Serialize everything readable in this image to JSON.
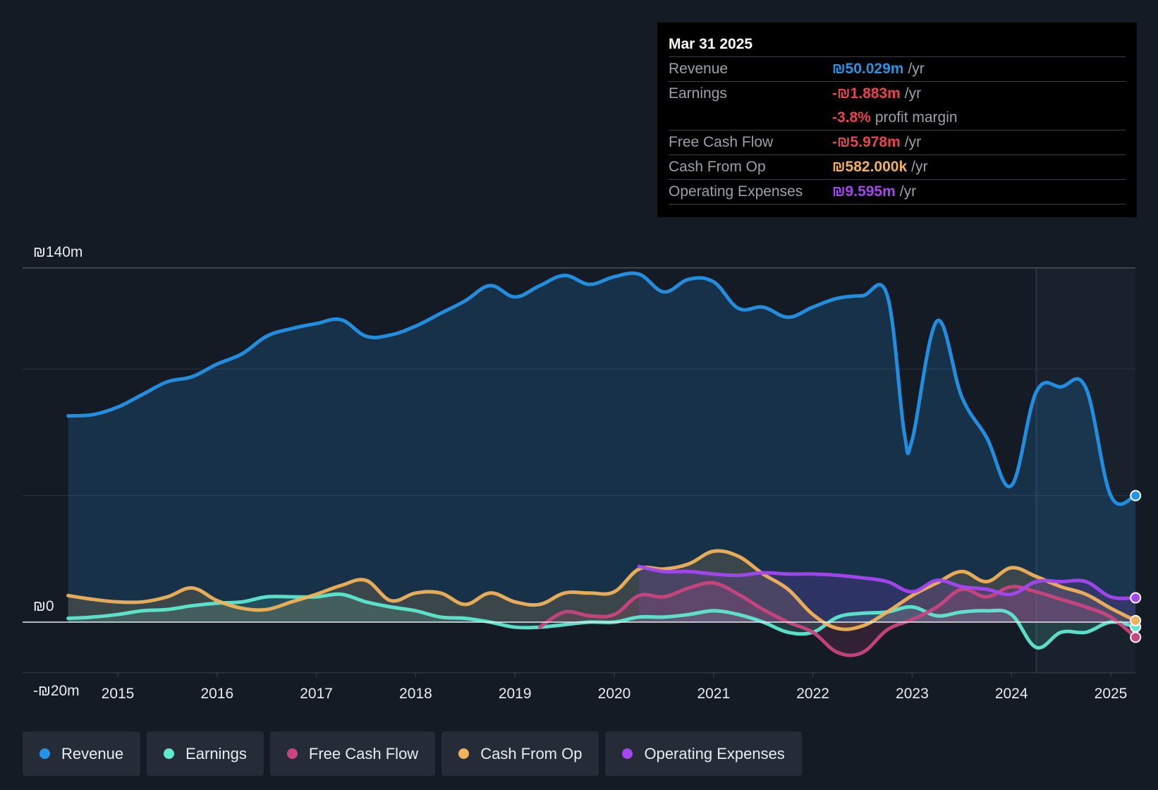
{
  "tooltip": {
    "date": "Mar 31 2025",
    "rows": [
      {
        "label": "Revenue",
        "value": "₪50.029m",
        "unit": "/yr",
        "color": "#2394e8"
      },
      {
        "label": "Earnings",
        "value": "-₪1.883m",
        "unit": "/yr",
        "color": "#e8434f"
      },
      {
        "label": "",
        "value": "-3.8%",
        "unit": "profit margin",
        "color": "#e8434f"
      },
      {
        "label": "Free Cash Flow",
        "value": "-₪5.978m",
        "unit": "/yr",
        "color": "#e8434f"
      },
      {
        "label": "Cash From Op",
        "value": "₪582.000k",
        "unit": "/yr",
        "color": "#f0b25a"
      },
      {
        "label": "Operating Expenses",
        "value": "₪9.595m",
        "unit": "/yr",
        "color": "#a447f0"
      }
    ]
  },
  "legend": [
    {
      "label": "Revenue",
      "color": "#2394e8"
    },
    {
      "label": "Earnings",
      "color": "#5ee8d0"
    },
    {
      "label": "Free Cash Flow",
      "color": "#c94580"
    },
    {
      "label": "Cash From Op",
      "color": "#f0b25a"
    },
    {
      "label": "Operating Expenses",
      "color": "#a447f0"
    }
  ],
  "chart_data": {
    "type": "line",
    "title": "",
    "xlabel": "",
    "ylabel": "",
    "xlim": [
      2014.05,
      2025.25
    ],
    "ylim": [
      -20,
      140
    ],
    "y_labels": [
      {
        "value": 140,
        "text": "₪140m"
      },
      {
        "value": 0,
        "text": "₪0"
      },
      {
        "value": -20,
        "text": "-₪20m"
      }
    ],
    "gridlines": [
      140,
      100,
      50
    ],
    "x_ticks": [
      {
        "value": 2015,
        "text": "2015"
      },
      {
        "value": 2016,
        "text": "2016"
      },
      {
        "value": 2017,
        "text": "2017"
      },
      {
        "value": 2018,
        "text": "2018"
      },
      {
        "value": 2019,
        "text": "2019"
      },
      {
        "value": 2020,
        "text": "2020"
      },
      {
        "value": 2021,
        "text": "2021"
      },
      {
        "value": 2022,
        "text": "2022"
      },
      {
        "value": 2023,
        "text": "2023"
      },
      {
        "value": 2024,
        "text": "2024"
      },
      {
        "value": 2025,
        "text": "2025"
      }
    ],
    "highlight_from": 2024.25,
    "series": [
      {
        "name": "Revenue",
        "color": "#2394e8",
        "fill": true,
        "x": [
          2014.5,
          2014.75,
          2015.0,
          2015.25,
          2015.5,
          2015.75,
          2016.0,
          2016.25,
          2016.5,
          2016.75,
          2017.0,
          2017.25,
          2017.5,
          2017.75,
          2018.0,
          2018.25,
          2018.5,
          2018.75,
          2019.0,
          2019.25,
          2019.5,
          2019.75,
          2020.0,
          2020.25,
          2020.5,
          2020.75,
          2021.0,
          2021.25,
          2021.5,
          2021.75,
          2022.0,
          2022.25,
          2022.5,
          2022.75,
          2022.92,
          2023.0,
          2023.25,
          2023.5,
          2023.75,
          2024.0,
          2024.25,
          2024.5,
          2024.75,
          2025.0,
          2025.25
        ],
        "values": [
          81.5,
          82,
          85,
          90,
          95,
          97,
          102,
          106,
          113,
          116,
          118,
          119.5,
          113,
          113.5,
          117,
          122,
          127,
          133,
          128.5,
          133,
          137,
          133.5,
          136.5,
          137.5,
          130.5,
          135.5,
          134.5,
          124,
          124.5,
          120.5,
          124.5,
          128,
          129,
          129,
          75,
          72,
          119,
          89,
          73,
          54,
          91,
          93,
          92.5,
          50,
          50
        ]
      },
      {
        "name": "Earnings",
        "color": "#5ee8d0",
        "fill": true,
        "x": [
          2014.5,
          2014.75,
          2015.0,
          2015.25,
          2015.5,
          2015.75,
          2016.0,
          2016.25,
          2016.5,
          2016.75,
          2017.0,
          2017.25,
          2017.5,
          2017.75,
          2018.0,
          2018.25,
          2018.5,
          2018.75,
          2019.0,
          2019.25,
          2019.5,
          2019.75,
          2020.0,
          2020.25,
          2020.5,
          2020.75,
          2021.0,
          2021.25,
          2021.5,
          2021.75,
          2022.0,
          2022.25,
          2022.5,
          2022.75,
          2023.0,
          2023.25,
          2023.5,
          2023.75,
          2024.0,
          2024.25,
          2024.5,
          2024.75,
          2025.0,
          2025.25
        ],
        "values": [
          1.5,
          2,
          3,
          4.5,
          5,
          6.5,
          7.5,
          8,
          10,
          10,
          10,
          11,
          8,
          6,
          4.5,
          2,
          1.5,
          0,
          -2,
          -2,
          -1,
          0,
          0,
          2,
          2,
          3,
          4.5,
          3,
          0,
          -4,
          -4,
          2,
          3.5,
          4,
          6,
          2.5,
          4,
          4.5,
          3,
          -10,
          -4,
          -4,
          0,
          -1.9
        ]
      },
      {
        "name": "Free Cash Flow",
        "color": "#c94580",
        "fill": true,
        "x": [
          2019.25,
          2019.5,
          2019.75,
          2020.0,
          2020.25,
          2020.5,
          2020.75,
          2021.0,
          2021.25,
          2021.5,
          2021.75,
          2022.0,
          2022.25,
          2022.5,
          2022.75,
          2023.0,
          2023.25,
          2023.5,
          2023.75,
          2024.0,
          2024.25,
          2024.5,
          2024.75,
          2025.0,
          2025.25
        ],
        "values": [
          -2,
          4,
          2.5,
          3,
          10.5,
          10,
          13.5,
          15.5,
          11,
          5,
          0,
          -4,
          -12,
          -12,
          -3,
          1,
          6,
          13,
          10,
          14,
          12,
          9,
          6,
          2,
          -6
        ]
      },
      {
        "name": "Cash From Op",
        "color": "#f0b25a",
        "fill": true,
        "x": [
          2014.5,
          2014.75,
          2015.0,
          2015.25,
          2015.5,
          2015.75,
          2016.0,
          2016.25,
          2016.5,
          2016.75,
          2017.0,
          2017.25,
          2017.5,
          2017.75,
          2018.0,
          2018.25,
          2018.5,
          2018.75,
          2019.0,
          2019.25,
          2019.5,
          2019.75,
          2020.0,
          2020.25,
          2020.5,
          2020.75,
          2021.0,
          2021.25,
          2021.5,
          2021.75,
          2022.0,
          2022.25,
          2022.5,
          2022.75,
          2023.0,
          2023.25,
          2023.5,
          2023.75,
          2024.0,
          2024.25,
          2024.5,
          2024.75,
          2025.0,
          2025.25
        ],
        "values": [
          10.5,
          9,
          8,
          8,
          10,
          13.5,
          8.5,
          5.5,
          5,
          8,
          11,
          14.5,
          16.5,
          8.5,
          11.5,
          11.5,
          7,
          11.5,
          8,
          7,
          11.5,
          11.5,
          12,
          21,
          21,
          23,
          28,
          26,
          19,
          13,
          3,
          -2.5,
          -1.5,
          4,
          10.5,
          15.5,
          20,
          16,
          21.5,
          18,
          14,
          11,
          5.5,
          0.58
        ]
      },
      {
        "name": "Operating Expenses",
        "color": "#a447f0",
        "fill": true,
        "x": [
          2020.25,
          2020.5,
          2020.75,
          2021.0,
          2021.25,
          2021.5,
          2021.75,
          2022.0,
          2022.25,
          2022.5,
          2022.75,
          2023.0,
          2023.25,
          2023.5,
          2023.75,
          2024.0,
          2024.25,
          2024.5,
          2024.75,
          2025.0,
          2025.25
        ],
        "values": [
          22,
          20,
          20,
          19,
          18.5,
          19.5,
          19,
          19,
          18.5,
          17.5,
          16,
          12,
          16.5,
          14,
          13,
          11,
          16,
          16,
          16,
          10,
          9.6
        ]
      }
    ]
  }
}
